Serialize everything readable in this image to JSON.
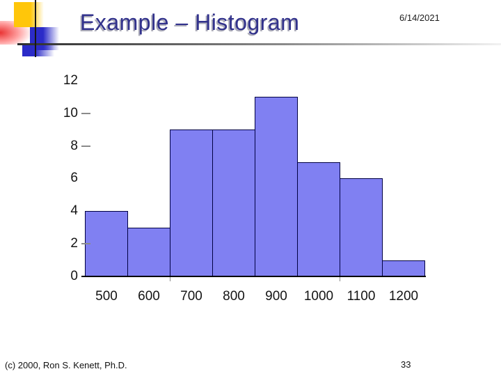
{
  "slide": {
    "title": "Example – Histogram",
    "date": "6/14/2021",
    "footer": "(c) 2000, Ron S. Kenett, Ph.D.",
    "page_number": "33"
  },
  "colors": {
    "title_text": "#32328c",
    "bar_fill": "#8080f2",
    "bar_border": "#000042",
    "accent_yellow": "#ffc60a",
    "accent_blue": "#2b2bc8",
    "accent_red": "#e82828"
  },
  "chart_data": {
    "type": "bar",
    "subtype": "histogram",
    "title": "",
    "xlabel": "",
    "ylabel": "",
    "categories": [
      500,
      600,
      700,
      800,
      900,
      1000,
      1100,
      1200
    ],
    "values": [
      4,
      3,
      9,
      9,
      11,
      7,
      6,
      1
    ],
    "ylim": [
      0,
      12
    ],
    "yticks": [
      0,
      2,
      4,
      6,
      8,
      10,
      12
    ],
    "ytick_dashes": [
      2,
      8,
      10
    ],
    "grid": false,
    "legend": false
  }
}
